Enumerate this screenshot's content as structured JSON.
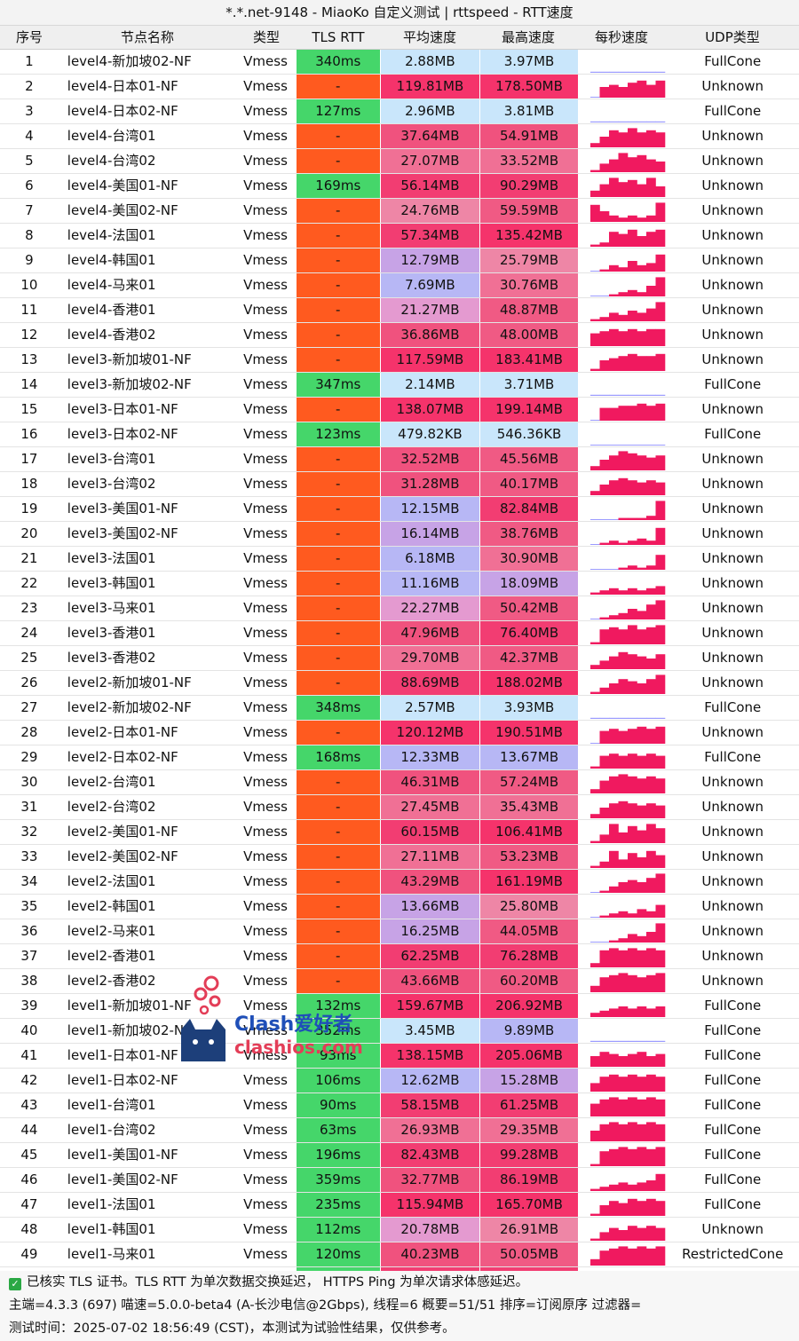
{
  "title": "*.*.net-9148 - MiaoKo 自定义测试 | rttspeed - RTT速度",
  "headers": {
    "idx": "序号",
    "name": "节点名称",
    "type": "类型",
    "rtt": "TLS RTT",
    "avg": "平均速度",
    "max": "最高速度",
    "per_sec": "每秒速度",
    "udp": "UDP类型"
  },
  "colors": {
    "rtt_fail": "#ff5a1f",
    "rtt_ok": "#45d66a",
    "spark": "#f0195f",
    "spark_alt": "#9b9bff"
  },
  "rows": [
    {
      "idx": "1",
      "name": "level4-新加坡02-NF",
      "type": "Vmess",
      "rtt": "340ms",
      "avg": "2.88MB",
      "max": "3.97MB",
      "udp": "FullCone",
      "ok": true,
      "avg_c": "#c9e6fb",
      "max_c": "#c9e6fb",
      "spark": [
        0.05,
        0.05,
        0.05,
        0.05,
        0.05,
        0.05,
        0.05,
        0.05
      ]
    },
    {
      "idx": "2",
      "name": "level4-日本01-NF",
      "type": "Vmess",
      "rtt": "-",
      "avg": "119.81MB",
      "max": "178.50MB",
      "udp": "Unknown",
      "ok": false,
      "avg_c": "#f5336b",
      "max_c": "#f5336b",
      "spark": [
        0,
        0.5,
        0.6,
        0.5,
        0.7,
        0.8,
        0.6,
        0.8
      ]
    },
    {
      "idx": "3",
      "name": "level4-日本02-NF",
      "type": "Vmess",
      "rtt": "127ms",
      "avg": "2.96MB",
      "max": "3.81MB",
      "udp": "FullCone",
      "ok": true,
      "avg_c": "#c9e6fb",
      "max_c": "#c9e6fb",
      "spark": [
        0.05,
        0.05,
        0.05,
        0.05,
        0.05,
        0.05,
        0.05,
        0.05
      ]
    },
    {
      "idx": "4",
      "name": "level4-台湾01",
      "type": "Vmess",
      "rtt": "-",
      "avg": "37.64MB",
      "max": "54.91MB",
      "udp": "Unknown",
      "ok": false,
      "avg_c": "#f0527e",
      "max_c": "#f0527e",
      "spark": [
        0.2,
        0.5,
        0.8,
        0.7,
        0.9,
        0.7,
        0.8,
        0.7
      ]
    },
    {
      "idx": "5",
      "name": "level4-台湾02",
      "type": "Vmess",
      "rtt": "-",
      "avg": "27.07MB",
      "max": "33.52MB",
      "udp": "Unknown",
      "ok": false,
      "avg_c": "#f07095",
      "max_c": "#f07095",
      "spark": [
        0.1,
        0.4,
        0.6,
        0.9,
        0.7,
        0.8,
        0.6,
        0.5
      ]
    },
    {
      "idx": "6",
      "name": "level4-美国01-NF",
      "type": "Vmess",
      "rtt": "169ms",
      "avg": "56.14MB",
      "max": "90.29MB",
      "udp": "Unknown",
      "ok": true,
      "avg_c": "#f23d72",
      "max_c": "#f23d72",
      "spark": [
        0.3,
        0.6,
        0.9,
        0.7,
        0.8,
        0.6,
        0.9,
        0.5
      ]
    },
    {
      "idx": "7",
      "name": "level4-美国02-NF",
      "type": "Vmess",
      "rtt": "-",
      "avg": "24.76MB",
      "max": "59.59MB",
      "udp": "Unknown",
      "ok": false,
      "avg_c": "#ee86a6",
      "max_c": "#f05a84",
      "spark": [
        0.8,
        0.5,
        0.3,
        0.2,
        0.3,
        0.2,
        0.3,
        0.9
      ]
    },
    {
      "idx": "8",
      "name": "level4-法国01",
      "type": "Vmess",
      "rtt": "-",
      "avg": "57.34MB",
      "max": "135.42MB",
      "udp": "Unknown",
      "ok": false,
      "avg_c": "#f23d72",
      "max_c": "#f5336b",
      "spark": [
        0.1,
        0.2,
        0.7,
        0.6,
        0.8,
        0.5,
        0.7,
        0.8
      ]
    },
    {
      "idx": "9",
      "name": "level4-韩国01",
      "type": "Vmess",
      "rtt": "-",
      "avg": "12.79MB",
      "max": "25.79MB",
      "udp": "Unknown",
      "ok": false,
      "avg_c": "#c7a3e6",
      "max_c": "#ee86a6",
      "spark": [
        0,
        0.1,
        0.3,
        0.2,
        0.5,
        0.3,
        0.4,
        0.8
      ]
    },
    {
      "idx": "10",
      "name": "level4-马来01",
      "type": "Vmess",
      "rtt": "-",
      "avg": "7.69MB",
      "max": "30.76MB",
      "udp": "Unknown",
      "ok": false,
      "avg_c": "#b7b7f5",
      "max_c": "#f07095",
      "spark": [
        0,
        0,
        0.1,
        0.2,
        0.3,
        0.2,
        0.5,
        0.9
      ]
    },
    {
      "idx": "11",
      "name": "level4-香港01",
      "type": "Vmess",
      "rtt": "-",
      "avg": "21.27MB",
      "max": "48.87MB",
      "udp": "Unknown",
      "ok": false,
      "avg_c": "#e49ad0",
      "max_c": "#f05a84",
      "spark": [
        0.1,
        0.2,
        0.4,
        0.3,
        0.5,
        0.4,
        0.6,
        0.9
      ]
    },
    {
      "idx": "12",
      "name": "level4-香港02",
      "type": "Vmess",
      "rtt": "-",
      "avg": "36.86MB",
      "max": "48.00MB",
      "udp": "Unknown",
      "ok": false,
      "avg_c": "#f0527e",
      "max_c": "#f05a84",
      "spark": [
        0.6,
        0.7,
        0.8,
        0.7,
        0.8,
        0.7,
        0.8,
        0.8
      ]
    },
    {
      "idx": "13",
      "name": "level3-新加坡01-NF",
      "type": "Vmess",
      "rtt": "-",
      "avg": "117.59MB",
      "max": "183.41MB",
      "udp": "Unknown",
      "ok": false,
      "avg_c": "#f5336b",
      "max_c": "#f5336b",
      "spark": [
        0.1,
        0.5,
        0.6,
        0.7,
        0.8,
        0.7,
        0.7,
        0.8
      ]
    },
    {
      "idx": "14",
      "name": "level3-新加坡02-NF",
      "type": "Vmess",
      "rtt": "347ms",
      "avg": "2.14MB",
      "max": "3.71MB",
      "udp": "FullCone",
      "ok": true,
      "avg_c": "#c9e6fb",
      "max_c": "#c9e6fb",
      "spark": [
        0.05,
        0.05,
        0.05,
        0.05,
        0.05,
        0.05,
        0.05,
        0.05
      ]
    },
    {
      "idx": "15",
      "name": "level3-日本01-NF",
      "type": "Vmess",
      "rtt": "-",
      "avg": "138.07MB",
      "max": "199.14MB",
      "udp": "Unknown",
      "ok": false,
      "avg_c": "#f5336b",
      "max_c": "#f5336b",
      "spark": [
        0,
        0.6,
        0.6,
        0.7,
        0.7,
        0.8,
        0.7,
        0.8
      ]
    },
    {
      "idx": "16",
      "name": "level3-日本02-NF",
      "type": "Vmess",
      "rtt": "123ms",
      "avg": "479.82KB",
      "max": "546.36KB",
      "udp": "FullCone",
      "ok": true,
      "avg_c": "#c9e6fb",
      "max_c": "#c9e6fb",
      "spark": [
        0.02,
        0.02,
        0.02,
        0.02,
        0.02,
        0.02,
        0.02,
        0.02
      ]
    },
    {
      "idx": "17",
      "name": "level3-台湾01",
      "type": "Vmess",
      "rtt": "-",
      "avg": "32.52MB",
      "max": "45.56MB",
      "udp": "Unknown",
      "ok": false,
      "avg_c": "#f0527e",
      "max_c": "#f05a84",
      "spark": [
        0.2,
        0.5,
        0.7,
        0.9,
        0.8,
        0.7,
        0.6,
        0.7
      ]
    },
    {
      "idx": "18",
      "name": "level3-台湾02",
      "type": "Vmess",
      "rtt": "-",
      "avg": "31.28MB",
      "max": "40.17MB",
      "udp": "Unknown",
      "ok": false,
      "avg_c": "#f0527e",
      "max_c": "#f05a84",
      "spark": [
        0.2,
        0.5,
        0.7,
        0.8,
        0.7,
        0.6,
        0.7,
        0.6
      ]
    },
    {
      "idx": "19",
      "name": "level3-美国01-NF",
      "type": "Vmess",
      "rtt": "-",
      "avg": "12.15MB",
      "max": "82.84MB",
      "udp": "Unknown",
      "ok": false,
      "avg_c": "#b7b7f5",
      "max_c": "#f23d72",
      "spark": [
        0,
        0,
        0,
        0.1,
        0.1,
        0.1,
        0.2,
        0.9
      ]
    },
    {
      "idx": "20",
      "name": "level3-美国02-NF",
      "type": "Vmess",
      "rtt": "-",
      "avg": "16.14MB",
      "max": "38.76MB",
      "udp": "Unknown",
      "ok": false,
      "avg_c": "#c7a3e6",
      "max_c": "#f05a84",
      "spark": [
        0,
        0.1,
        0.2,
        0.1,
        0.2,
        0.3,
        0.2,
        0.8
      ]
    },
    {
      "idx": "21",
      "name": "level3-法国01",
      "type": "Vmess",
      "rtt": "-",
      "avg": "6.18MB",
      "max": "30.90MB",
      "udp": "Unknown",
      "ok": false,
      "avg_c": "#b7b7f5",
      "max_c": "#f07095",
      "spark": [
        0,
        0,
        0,
        0.1,
        0.2,
        0.1,
        0.2,
        0.7
      ]
    },
    {
      "idx": "22",
      "name": "level3-韩国01",
      "type": "Vmess",
      "rtt": "-",
      "avg": "11.16MB",
      "max": "18.09MB",
      "udp": "Unknown",
      "ok": false,
      "avg_c": "#b7b7f5",
      "max_c": "#c7a3e6",
      "spark": [
        0.1,
        0.2,
        0.3,
        0.2,
        0.3,
        0.2,
        0.3,
        0.4
      ]
    },
    {
      "idx": "23",
      "name": "level3-马来01",
      "type": "Vmess",
      "rtt": "-",
      "avg": "22.27MB",
      "max": "50.42MB",
      "udp": "Unknown",
      "ok": false,
      "avg_c": "#e49ad0",
      "max_c": "#f05a84",
      "spark": [
        0,
        0.1,
        0.2,
        0.3,
        0.5,
        0.4,
        0.7,
        0.9
      ]
    },
    {
      "idx": "24",
      "name": "level3-香港01",
      "type": "Vmess",
      "rtt": "-",
      "avg": "47.96MB",
      "max": "76.40MB",
      "udp": "Unknown",
      "ok": false,
      "avg_c": "#f0527e",
      "max_c": "#f23d72",
      "spark": [
        0.1,
        0.7,
        0.8,
        0.7,
        0.9,
        0.7,
        0.8,
        0.9
      ]
    },
    {
      "idx": "25",
      "name": "level3-香港02",
      "type": "Vmess",
      "rtt": "-",
      "avg": "29.70MB",
      "max": "42.37MB",
      "udp": "Unknown",
      "ok": false,
      "avg_c": "#f07095",
      "max_c": "#f05a84",
      "spark": [
        0.2,
        0.4,
        0.6,
        0.8,
        0.7,
        0.6,
        0.5,
        0.7
      ]
    },
    {
      "idx": "26",
      "name": "level2-新加坡01-NF",
      "type": "Vmess",
      "rtt": "-",
      "avg": "88.69MB",
      "max": "188.02MB",
      "udp": "Unknown",
      "ok": false,
      "avg_c": "#f23d72",
      "max_c": "#f5336b",
      "spark": [
        0.1,
        0.3,
        0.5,
        0.7,
        0.6,
        0.5,
        0.7,
        0.9
      ]
    },
    {
      "idx": "27",
      "name": "level2-新加坡02-NF",
      "type": "Vmess",
      "rtt": "348ms",
      "avg": "2.57MB",
      "max": "3.93MB",
      "udp": "FullCone",
      "ok": true,
      "avg_c": "#c9e6fb",
      "max_c": "#c9e6fb",
      "spark": [
        0.05,
        0.05,
        0.05,
        0.05,
        0.05,
        0.05,
        0.05,
        0.05
      ]
    },
    {
      "idx": "28",
      "name": "level2-日本01-NF",
      "type": "Vmess",
      "rtt": "-",
      "avg": "120.12MB",
      "max": "190.51MB",
      "udp": "Unknown",
      "ok": false,
      "avg_c": "#f5336b",
      "max_c": "#f5336b",
      "spark": [
        0,
        0.6,
        0.7,
        0.6,
        0.7,
        0.8,
        0.7,
        0.8
      ]
    },
    {
      "idx": "29",
      "name": "level2-日本02-NF",
      "type": "Vmess",
      "rtt": "168ms",
      "avg": "12.33MB",
      "max": "13.67MB",
      "udp": "FullCone",
      "ok": true,
      "avg_c": "#b7b7f5",
      "max_c": "#b7b7f5",
      "spark": [
        0.1,
        0.6,
        0.7,
        0.6,
        0.7,
        0.6,
        0.7,
        0.6
      ]
    },
    {
      "idx": "30",
      "name": "level2-台湾01",
      "type": "Vmess",
      "rtt": "-",
      "avg": "46.31MB",
      "max": "57.24MB",
      "udp": "Unknown",
      "ok": false,
      "avg_c": "#f0527e",
      "max_c": "#f05a84",
      "spark": [
        0.2,
        0.6,
        0.8,
        0.9,
        0.8,
        0.7,
        0.8,
        0.7
      ]
    },
    {
      "idx": "31",
      "name": "level2-台湾02",
      "type": "Vmess",
      "rtt": "-",
      "avg": "27.45MB",
      "max": "35.43MB",
      "udp": "Unknown",
      "ok": false,
      "avg_c": "#f07095",
      "max_c": "#f07095",
      "spark": [
        0.2,
        0.5,
        0.7,
        0.8,
        0.7,
        0.6,
        0.7,
        0.6
      ]
    },
    {
      "idx": "32",
      "name": "level2-美国01-NF",
      "type": "Vmess",
      "rtt": "-",
      "avg": "60.15MB",
      "max": "106.41MB",
      "udp": "Unknown",
      "ok": false,
      "avg_c": "#f23d72",
      "max_c": "#f5336b",
      "spark": [
        0.1,
        0.4,
        0.9,
        0.5,
        0.8,
        0.6,
        0.9,
        0.7
      ]
    },
    {
      "idx": "33",
      "name": "level2-美国02-NF",
      "type": "Vmess",
      "rtt": "-",
      "avg": "27.11MB",
      "max": "53.23MB",
      "udp": "Unknown",
      "ok": false,
      "avg_c": "#f07095",
      "max_c": "#f05a84",
      "spark": [
        0.1,
        0.3,
        0.8,
        0.4,
        0.7,
        0.5,
        0.8,
        0.6
      ]
    },
    {
      "idx": "34",
      "name": "level2-法国01",
      "type": "Vmess",
      "rtt": "-",
      "avg": "43.29MB",
      "max": "161.19MB",
      "udp": "Unknown",
      "ok": false,
      "avg_c": "#f0527e",
      "max_c": "#f5336b",
      "spark": [
        0,
        0.1,
        0.3,
        0.5,
        0.6,
        0.5,
        0.7,
        0.9
      ]
    },
    {
      "idx": "35",
      "name": "level2-韩国01",
      "type": "Vmess",
      "rtt": "-",
      "avg": "13.66MB",
      "max": "25.80MB",
      "udp": "Unknown",
      "ok": false,
      "avg_c": "#c7a3e6",
      "max_c": "#ee86a6",
      "spark": [
        0,
        0.1,
        0.2,
        0.3,
        0.2,
        0.4,
        0.3,
        0.6
      ]
    },
    {
      "idx": "36",
      "name": "level2-马来01",
      "type": "Vmess",
      "rtt": "-",
      "avg": "16.25MB",
      "max": "44.05MB",
      "udp": "Unknown",
      "ok": false,
      "avg_c": "#c7a3e6",
      "max_c": "#f05a84",
      "spark": [
        0,
        0,
        0.1,
        0.2,
        0.4,
        0.3,
        0.5,
        0.9
      ]
    },
    {
      "idx": "37",
      "name": "level2-香港01",
      "type": "Vmess",
      "rtt": "-",
      "avg": "62.25MB",
      "max": "76.28MB",
      "udp": "Unknown",
      "ok": false,
      "avg_c": "#f23d72",
      "max_c": "#f23d72",
      "spark": [
        0.2,
        0.8,
        0.9,
        0.8,
        0.9,
        0.8,
        0.9,
        0.8
      ]
    },
    {
      "idx": "38",
      "name": "level2-香港02",
      "type": "Vmess",
      "rtt": "-",
      "avg": "43.66MB",
      "max": "60.20MB",
      "udp": "Unknown",
      "ok": false,
      "avg_c": "#f0527e",
      "max_c": "#f05a84",
      "spark": [
        0.3,
        0.7,
        0.8,
        0.9,
        0.8,
        0.7,
        0.8,
        0.9
      ]
    },
    {
      "idx": "39",
      "name": "level1-新加坡01-NF",
      "type": "Vmess",
      "rtt": "132ms",
      "avg": "159.67MB",
      "max": "206.92MB",
      "udp": "FullCone",
      "ok": true,
      "avg_c": "#f5336b",
      "max_c": "#f5336b",
      "spark": [
        0.2,
        0.3,
        0.4,
        0.5,
        0.4,
        0.5,
        0.4,
        0.5
      ]
    },
    {
      "idx": "40",
      "name": "level1-新加坡02-NF",
      "type": "Vmess",
      "rtt": "352ms",
      "avg": "3.45MB",
      "max": "9.89MB",
      "udp": "FullCone",
      "ok": true,
      "avg_c": "#c9e6fb",
      "max_c": "#b7b7f5",
      "spark": [
        0.05,
        0.05,
        0.05,
        0.05,
        0.05,
        0.05,
        0.05,
        0.05
      ]
    },
    {
      "idx": "41",
      "name": "level1-日本01-NF",
      "type": "Vmess",
      "rtt": "93ms",
      "avg": "138.15MB",
      "max": "205.06MB",
      "udp": "FullCone",
      "ok": true,
      "avg_c": "#f5336b",
      "max_c": "#f5336b",
      "spark": [
        0.5,
        0.7,
        0.6,
        0.5,
        0.6,
        0.7,
        0.5,
        0.6
      ]
    },
    {
      "idx": "42",
      "name": "level1-日本02-NF",
      "type": "Vmess",
      "rtt": "106ms",
      "avg": "12.62MB",
      "max": "15.28MB",
      "udp": "FullCone",
      "ok": true,
      "avg_c": "#b7b7f5",
      "max_c": "#c7a3e6",
      "spark": [
        0.4,
        0.7,
        0.8,
        0.7,
        0.8,
        0.7,
        0.8,
        0.7
      ]
    },
    {
      "idx": "43",
      "name": "level1-台湾01",
      "type": "Vmess",
      "rtt": "90ms",
      "avg": "58.15MB",
      "max": "61.25MB",
      "udp": "FullCone",
      "ok": true,
      "avg_c": "#f23d72",
      "max_c": "#f23d72",
      "spark": [
        0.6,
        0.8,
        0.9,
        0.8,
        0.9,
        0.8,
        0.9,
        0.8
      ]
    },
    {
      "idx": "44",
      "name": "level1-台湾02",
      "type": "Vmess",
      "rtt": "63ms",
      "avg": "26.93MB",
      "max": "29.35MB",
      "udp": "FullCone",
      "ok": true,
      "avg_c": "#f07095",
      "max_c": "#f07095",
      "spark": [
        0.5,
        0.8,
        0.9,
        0.8,
        0.9,
        0.8,
        0.9,
        0.8
      ]
    },
    {
      "idx": "45",
      "name": "level1-美国01-NF",
      "type": "Vmess",
      "rtt": "196ms",
      "avg": "82.43MB",
      "max": "99.28MB",
      "udp": "FullCone",
      "ok": true,
      "avg_c": "#f23d72",
      "max_c": "#f23d72",
      "spark": [
        0.1,
        0.7,
        0.8,
        0.9,
        0.8,
        0.9,
        0.8,
        0.9
      ]
    },
    {
      "idx": "46",
      "name": "level1-美国02-NF",
      "type": "Vmess",
      "rtt": "359ms",
      "avg": "32.77MB",
      "max": "86.19MB",
      "udp": "FullCone",
      "ok": true,
      "avg_c": "#f0527e",
      "max_c": "#f23d72",
      "spark": [
        0.1,
        0.2,
        0.3,
        0.4,
        0.3,
        0.4,
        0.5,
        0.8
      ]
    },
    {
      "idx": "47",
      "name": "level1-法国01",
      "type": "Vmess",
      "rtt": "235ms",
      "avg": "115.94MB",
      "max": "165.70MB",
      "udp": "FullCone",
      "ok": true,
      "avg_c": "#f5336b",
      "max_c": "#f5336b",
      "spark": [
        0.1,
        0.5,
        0.7,
        0.6,
        0.8,
        0.7,
        0.8,
        0.7
      ]
    },
    {
      "idx": "48",
      "name": "level1-韩国01",
      "type": "Vmess",
      "rtt": "112ms",
      "avg": "20.78MB",
      "max": "26.91MB",
      "udp": "Unknown",
      "ok": true,
      "avg_c": "#e49ad0",
      "max_c": "#ee86a6",
      "spark": [
        0.1,
        0.4,
        0.6,
        0.5,
        0.7,
        0.6,
        0.7,
        0.6
      ]
    },
    {
      "idx": "49",
      "name": "level1-马来01",
      "type": "Vmess",
      "rtt": "120ms",
      "avg": "40.23MB",
      "max": "50.05MB",
      "udp": "RestrictedCone",
      "ok": true,
      "avg_c": "#f0527e",
      "max_c": "#f05a84",
      "spark": [
        0.3,
        0.7,
        0.8,
        0.9,
        0.8,
        0.9,
        0.8,
        0.9
      ]
    },
    {
      "idx": "50",
      "name": "level1-香港01",
      "type": "Vmess",
      "rtt": "42ms",
      "avg": "66.26MB",
      "max": "78.15MB",
      "udp": "FullCone",
      "ok": true,
      "avg_c": "#f23d72",
      "max_c": "#f23d72",
      "spark": [
        0.6,
        0.8,
        0.9,
        0.8,
        0.9,
        0.8,
        0.9,
        0.8
      ]
    },
    {
      "idx": "51",
      "name": "level1-香港02",
      "type": "Vmess",
      "rtt": "58ms",
      "avg": "44.96MB",
      "max": "69.62MB",
      "udp": "FullCone",
      "ok": true,
      "avg_c": "#f0527e",
      "max_c": "#f23d72",
      "spark": [
        0.4,
        0.7,
        0.8,
        0.9,
        0.8,
        0.7,
        0.8,
        0.9
      ]
    }
  ],
  "footer": {
    "line1": "已核实 TLS 证书。TLS RTT 为单次数据交换延迟， HTTPS Ping 为单次请求体感延迟。",
    "line2": "主端=4.3.3 (697) 喵速=5.0.0-beta4 (A-长沙电信@2Gbps), 线程=6 概要=51/51 排序=订阅原序 过滤器=",
    "line3": "测试时间：2025-07-02 18:56:49 (CST)，本测试为试验性结果，仅供参考。"
  },
  "watermark": {
    "line1": "Clash爱好者",
    "line2": "clashios.com",
    "icon": "cat-logo-icon"
  }
}
